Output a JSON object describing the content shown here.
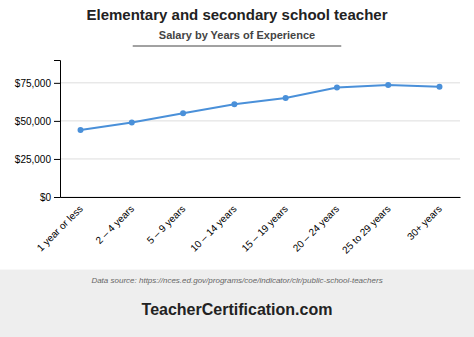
{
  "chart_data": {
    "type": "line",
    "title": "Elementary and secondary school teacher",
    "subtitle": "Salary by Years of Experience",
    "categories": [
      "1 year or less",
      "2 – 4 years",
      "5 – 9 years",
      "10 – 14 years",
      "15 – 19 years",
      "20 – 24 years",
      "25 to 29 years",
      "30+ years"
    ],
    "values": [
      44000,
      49000,
      55000,
      61000,
      65000,
      72000,
      73500,
      72500
    ],
    "color": "#4a90d9",
    "marker": "circle",
    "ylim": [
      0,
      90000
    ],
    "yticks": [
      {
        "value": 0,
        "label": "$0"
      },
      {
        "value": 25000,
        "label": "$25,000"
      },
      {
        "value": 50000,
        "label": "$50,000"
      },
      {
        "value": 75000,
        "label": "$75,000"
      }
    ],
    "grid": true,
    "annotations": [
      "Data source: https://nces.ed.gov/programs/coe/indicator/clr/public-school-teachers",
      "Teacher",
      "Certification.com"
    ]
  }
}
